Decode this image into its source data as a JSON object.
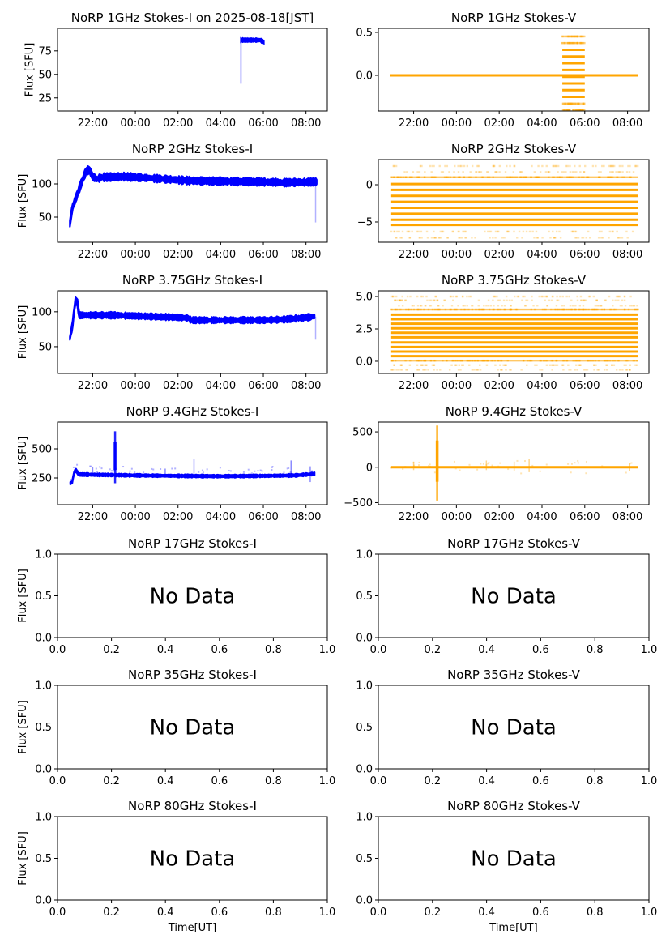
{
  "figure": {
    "title_suffix_date": "2025-08-18[JST]",
    "ylabel": "Flux [SFU]",
    "xlabel": "Time[UT]",
    "no_data_text": "No Data",
    "colors": {
      "stokes_i": "#0000ff",
      "stokes_v": "#ffa500",
      "axis": "#000000"
    }
  },
  "chart_data": [
    {
      "id": "1ghz-i",
      "type": "scatter",
      "title": "NoRP 1GHz Stokes-I on 2025-08-18[JST]",
      "ylabel": "Flux [SFU]",
      "has_data": true,
      "stokes": "I",
      "xlim_hours": [
        20.35,
        33.0
      ],
      "xticks": [
        {
          "h": 22,
          "label": "22:00"
        },
        {
          "h": 24,
          "label": "00:00"
        },
        {
          "h": 26,
          "label": "02:00"
        },
        {
          "h": 28,
          "label": "04:00"
        },
        {
          "h": 30,
          "label": "06:00"
        },
        {
          "h": 32,
          "label": "08:00"
        }
      ],
      "ylim": [
        11,
        99
      ],
      "yticks": [
        {
          "v": 25,
          "label": "25"
        },
        {
          "v": 50,
          "label": "50"
        },
        {
          "v": 75,
          "label": "75"
        }
      ],
      "segments": [
        {
          "t0": 28.95,
          "t1": 30.02,
          "level": 86.5,
          "spread": 1.6,
          "end_level": 84.5
        },
        {
          "spike_t": 28.95,
          "spike_min": 40,
          "spike_max": 87
        }
      ]
    },
    {
      "id": "1ghz-v",
      "type": "scatter",
      "title": "NoRP 1GHz Stokes-V",
      "ylabel": "",
      "has_data": true,
      "stokes": "V",
      "xlim_hours": [
        20.35,
        33.0
      ],
      "xticks": [
        {
          "h": 22,
          "label": "22:00"
        },
        {
          "h": 24,
          "label": "00:00"
        },
        {
          "h": 26,
          "label": "02:00"
        },
        {
          "h": 28,
          "label": "04:00"
        },
        {
          "h": 30,
          "label": "06:00"
        },
        {
          "h": 32,
          "label": "08:00"
        }
      ],
      "ylim": [
        -0.415,
        0.547
      ],
      "yticks": [
        {
          "v": 0.0,
          "label": "0.0"
        },
        {
          "v": 0.5,
          "label": "0.5"
        }
      ],
      "baseline": {
        "t0": 20.9,
        "t1": 32.5,
        "value": 0.0
      },
      "quantized": {
        "t0": 28.95,
        "t1": 30.0,
        "levels": [
          0.453,
          0.376,
          0.297,
          0.219,
          0.141,
          0.062,
          -0.016,
          -0.094,
          -0.172,
          -0.25,
          -0.329,
          -0.407
        ],
        "faint_levels": [
          0.453,
          0.376,
          -0.329,
          -0.407
        ]
      }
    },
    {
      "id": "2ghz-i",
      "type": "scatter",
      "title": "NoRP 2GHz Stokes-I",
      "ylabel": "Flux [SFU]",
      "has_data": true,
      "stokes": "I",
      "xlim_hours": [
        20.35,
        33.0
      ],
      "xticks": [
        {
          "h": 22,
          "label": "22:00"
        },
        {
          "h": 24,
          "label": "00:00"
        },
        {
          "h": 26,
          "label": "02:00"
        },
        {
          "h": 28,
          "label": "04:00"
        },
        {
          "h": 30,
          "label": "06:00"
        },
        {
          "h": 32,
          "label": "08:00"
        }
      ],
      "ylim": [
        12.2,
        136.6
      ],
      "yticks": [
        {
          "v": 50,
          "label": "50"
        },
        {
          "v": 100,
          "label": "100"
        }
      ],
      "profile": [
        [
          20.93,
          40
        ],
        [
          21.05,
          65
        ],
        [
          21.15,
          73
        ],
        [
          21.45,
          100
        ],
        [
          21.7,
          120
        ],
        [
          21.85,
          121
        ],
        [
          22.0,
          111
        ],
        [
          22.2,
          107
        ],
        [
          22.4,
          110
        ],
        [
          23.5,
          111
        ],
        [
          24.5,
          109
        ],
        [
          25.5,
          107
        ],
        [
          26.5,
          105
        ],
        [
          28.0,
          104
        ],
        [
          30.0,
          103
        ],
        [
          31.0,
          102
        ],
        [
          32.5,
          103
        ]
      ],
      "spread": 4.5,
      "drop": {
        "t": 32.45,
        "min": 42,
        "max": 103
      }
    },
    {
      "id": "2ghz-v",
      "type": "scatter",
      "title": "NoRP 2GHz Stokes-V",
      "ylabel": "",
      "has_data": true,
      "stokes": "V",
      "xlim_hours": [
        20.35,
        33.0
      ],
      "xticks": [
        {
          "h": 22,
          "label": "22:00"
        },
        {
          "h": 24,
          "label": "00:00"
        },
        {
          "h": 26,
          "label": "02:00"
        },
        {
          "h": 28,
          "label": "04:00"
        },
        {
          "h": 30,
          "label": "06:00"
        },
        {
          "h": 32,
          "label": "08:00"
        }
      ],
      "ylim": [
        -7.72,
        3.37
      ],
      "yticks": [
        {
          "v": -5,
          "label": "−5"
        },
        {
          "v": 0,
          "label": "0"
        }
      ],
      "quantized": {
        "t0": 20.95,
        "t1": 32.5,
        "levels": [
          2.5,
          1.7,
          1.0,
          0.1,
          -0.7,
          -1.5,
          -2.3,
          -3.1,
          -3.9,
          -4.7,
          -5.4,
          -6.3,
          -7.1
        ],
        "faint_levels": [
          2.5,
          1.7,
          -6.3,
          -7.1
        ],
        "medium_levels": [
          1.0
        ]
      }
    },
    {
      "id": "375ghz-i",
      "type": "scatter",
      "title": "NoRP 3.75GHz Stokes-I",
      "ylabel": "Flux [SFU]",
      "has_data": true,
      "stokes": "I",
      "xlim_hours": [
        20.35,
        33.0
      ],
      "xticks": [
        {
          "h": 22,
          "label": "22:00"
        },
        {
          "h": 24,
          "label": "00:00"
        },
        {
          "h": 26,
          "label": "02:00"
        },
        {
          "h": 28,
          "label": "04:00"
        },
        {
          "h": 30,
          "label": "06:00"
        },
        {
          "h": 32,
          "label": "08:00"
        }
      ],
      "ylim": [
        11.6,
        130
      ],
      "yticks": [
        {
          "v": 50,
          "label": "50"
        },
        {
          "v": 100,
          "label": "100"
        }
      ],
      "profile": [
        [
          20.93,
          62
        ],
        [
          21.05,
          80
        ],
        [
          21.12,
          100
        ],
        [
          21.2,
          117
        ],
        [
          21.3,
          112
        ],
        [
          21.35,
          95
        ],
        [
          22.0,
          95
        ],
        [
          23.0,
          95
        ],
        [
          24.0,
          94
        ],
        [
          25.0,
          93
        ],
        [
          26.0,
          92
        ],
        [
          26.5,
          91
        ],
        [
          26.6,
          88
        ],
        [
          28.0,
          88
        ],
        [
          30.0,
          88
        ],
        [
          31.0,
          89
        ],
        [
          32.4,
          93
        ]
      ],
      "spread": 3.5,
      "drop": {
        "t": 32.45,
        "min": 60,
        "max": 93
      }
    },
    {
      "id": "375ghz-v",
      "type": "scatter",
      "title": "NoRP 3.75GHz Stokes-V",
      "ylabel": "",
      "has_data": true,
      "stokes": "V",
      "xlim_hours": [
        20.35,
        33.0
      ],
      "xticks": [
        {
          "h": 22,
          "label": "22:00"
        },
        {
          "h": 24,
          "label": "00:00"
        },
        {
          "h": 26,
          "label": "02:00"
        },
        {
          "h": 28,
          "label": "04:00"
        },
        {
          "h": 30,
          "label": "06:00"
        },
        {
          "h": 32,
          "label": "08:00"
        }
      ],
      "ylim": [
        -0.94,
        5.44
      ],
      "yticks": [
        {
          "v": 0.0,
          "label": "0.0"
        },
        {
          "v": 2.5,
          "label": "2.5"
        },
        {
          "v": 5.0,
          "label": "5.0"
        }
      ],
      "quantized": {
        "t0": 20.95,
        "t1": 32.5,
        "levels": [
          5.0,
          4.7,
          4.3,
          4.0,
          3.6,
          3.25,
          2.9,
          2.55,
          2.2,
          1.85,
          1.45,
          1.1,
          0.75,
          0.4,
          0.05,
          -0.3,
          -0.65
        ],
        "faint_levels": [
          5.0,
          4.7,
          4.3,
          -0.3,
          -0.65
        ],
        "medium_levels": [
          4.0,
          0.05
        ]
      }
    },
    {
      "id": "94ghz-i",
      "type": "scatter",
      "title": "NoRP 9.4GHz Stokes-I",
      "ylabel": "Flux [SFU]",
      "has_data": true,
      "stokes": "I",
      "xlim_hours": [
        20.35,
        33.0
      ],
      "xticks": [
        {
          "h": 22,
          "label": "22:00"
        },
        {
          "h": 24,
          "label": "00:00"
        },
        {
          "h": 26,
          "label": "02:00"
        },
        {
          "h": 28,
          "label": "04:00"
        },
        {
          "h": 30,
          "label": "06:00"
        },
        {
          "h": 32,
          "label": "08:00"
        }
      ],
      "ylim": [
        21,
        729
      ],
      "yticks": [
        {
          "v": 250,
          "label": "250"
        },
        {
          "v": 500,
          "label": "500"
        }
      ],
      "profile": [
        [
          20.95,
          205
        ],
        [
          21.05,
          215
        ],
        [
          21.1,
          280
        ],
        [
          21.2,
          320
        ],
        [
          21.35,
          280
        ],
        [
          22.0,
          278
        ],
        [
          23.0,
          275
        ],
        [
          24.0,
          272
        ],
        [
          26.0,
          268
        ],
        [
          28.0,
          265
        ],
        [
          30.0,
          268
        ],
        [
          31.5,
          272
        ],
        [
          32.4,
          285
        ]
      ],
      "spread": 10,
      "spikes": [
        {
          "t": 23.05,
          "max": 650,
          "min": 205
        },
        {
          "t": 26.75,
          "max": 410,
          "min": 260
        },
        {
          "t": 25.4,
          "max": 330,
          "min": 265
        },
        {
          "t": 31.3,
          "max": 400,
          "min": 265
        },
        {
          "t": 22.0,
          "max": 345,
          "min": 270
        },
        {
          "t": 32.2,
          "max": 350,
          "min": 215
        }
      ]
    },
    {
      "id": "94ghz-v",
      "type": "scatter",
      "title": "NoRP 9.4GHz Stokes-V",
      "ylabel": "",
      "has_data": true,
      "stokes": "V",
      "xlim_hours": [
        20.35,
        33.0
      ],
      "xticks": [
        {
          "h": 22,
          "label": "22:00"
        },
        {
          "h": 24,
          "label": "00:00"
        },
        {
          "h": 26,
          "label": "02:00"
        },
        {
          "h": 28,
          "label": "04:00"
        },
        {
          "h": 30,
          "label": "06:00"
        },
        {
          "h": 32,
          "label": "08:00"
        }
      ],
      "ylim": [
        -529,
        638
      ],
      "yticks": [
        {
          "v": -500,
          "label": "−500"
        },
        {
          "v": 0,
          "label": "0"
        },
        {
          "v": 500,
          "label": "500"
        }
      ],
      "baseline": {
        "t0": 20.95,
        "t1": 32.5,
        "value": 0,
        "spread": 12
      },
      "spikes": [
        {
          "t": 23.1,
          "max": 590,
          "min": -470
        },
        {
          "t": 26.7,
          "max": 80,
          "min": -60
        },
        {
          "t": 27.4,
          "max": 120,
          "min": -70
        },
        {
          "t": 25.4,
          "max": 95,
          "min": -40
        },
        {
          "t": 22.0,
          "max": 80,
          "min": -40
        },
        {
          "t": 32.1,
          "max": 50,
          "min": -50
        }
      ]
    },
    {
      "id": "17ghz-i",
      "type": "scatter",
      "title": "NoRP 17GHz Stokes-I",
      "ylabel": "Flux [SFU]",
      "has_data": false,
      "stokes": "I",
      "xlim": [
        0,
        1
      ],
      "ylim": [
        0,
        1
      ],
      "xticks": [
        {
          "v": 0.0,
          "label": "0.0"
        },
        {
          "v": 0.2,
          "label": "0.2"
        },
        {
          "v": 0.4,
          "label": "0.4"
        },
        {
          "v": 0.6,
          "label": "0.6"
        },
        {
          "v": 0.8,
          "label": "0.8"
        },
        {
          "v": 1.0,
          "label": "1.0"
        }
      ],
      "yticks": [
        {
          "v": 0.0,
          "label": "0.0"
        },
        {
          "v": 0.5,
          "label": "0.5"
        },
        {
          "v": 1.0,
          "label": "1.0"
        }
      ],
      "annotation": "No Data"
    },
    {
      "id": "17ghz-v",
      "type": "scatter",
      "title": "NoRP 17GHz Stokes-V",
      "ylabel": "",
      "has_data": false,
      "stokes": "V",
      "xlim": [
        0,
        1
      ],
      "ylim": [
        0,
        1
      ],
      "xticks": [
        {
          "v": 0.0,
          "label": "0.0"
        },
        {
          "v": 0.2,
          "label": "0.2"
        },
        {
          "v": 0.4,
          "label": "0.4"
        },
        {
          "v": 0.6,
          "label": "0.6"
        },
        {
          "v": 0.8,
          "label": "0.8"
        },
        {
          "v": 1.0,
          "label": "1.0"
        }
      ],
      "yticks": [
        {
          "v": 0.0,
          "label": "0.0"
        },
        {
          "v": 0.5,
          "label": "0.5"
        },
        {
          "v": 1.0,
          "label": "1.0"
        }
      ],
      "annotation": "No Data"
    },
    {
      "id": "35ghz-i",
      "type": "scatter",
      "title": "NoRP 35GHz Stokes-I",
      "ylabel": "Flux [SFU]",
      "has_data": false,
      "stokes": "I",
      "xlim": [
        0,
        1
      ],
      "ylim": [
        0,
        1
      ],
      "xticks": [
        {
          "v": 0.0,
          "label": "0.0"
        },
        {
          "v": 0.2,
          "label": "0.2"
        },
        {
          "v": 0.4,
          "label": "0.4"
        },
        {
          "v": 0.6,
          "label": "0.6"
        },
        {
          "v": 0.8,
          "label": "0.8"
        },
        {
          "v": 1.0,
          "label": "1.0"
        }
      ],
      "yticks": [
        {
          "v": 0.0,
          "label": "0.0"
        },
        {
          "v": 0.5,
          "label": "0.5"
        },
        {
          "v": 1.0,
          "label": "1.0"
        }
      ],
      "annotation": "No Data"
    },
    {
      "id": "35ghz-v",
      "type": "scatter",
      "title": "NoRP 35GHz Stokes-V",
      "ylabel": "",
      "has_data": false,
      "stokes": "V",
      "xlim": [
        0,
        1
      ],
      "ylim": [
        0,
        1
      ],
      "xticks": [
        {
          "v": 0.0,
          "label": "0.0"
        },
        {
          "v": 0.2,
          "label": "0.2"
        },
        {
          "v": 0.4,
          "label": "0.4"
        },
        {
          "v": 0.6,
          "label": "0.6"
        },
        {
          "v": 0.8,
          "label": "0.8"
        },
        {
          "v": 1.0,
          "label": "1.0"
        }
      ],
      "yticks": [
        {
          "v": 0.0,
          "label": "0.0"
        },
        {
          "v": 0.5,
          "label": "0.5"
        },
        {
          "v": 1.0,
          "label": "1.0"
        }
      ],
      "annotation": "No Data"
    },
    {
      "id": "80ghz-i",
      "type": "scatter",
      "title": "NoRP 80GHz Stokes-I",
      "ylabel": "Flux [SFU]",
      "xlabel": "Time[UT]",
      "has_data": false,
      "stokes": "I",
      "xlim": [
        0,
        1
      ],
      "ylim": [
        0,
        1
      ],
      "xticks": [
        {
          "v": 0.0,
          "label": "0.0"
        },
        {
          "v": 0.2,
          "label": "0.2"
        },
        {
          "v": 0.4,
          "label": "0.4"
        },
        {
          "v": 0.6,
          "label": "0.6"
        },
        {
          "v": 0.8,
          "label": "0.8"
        },
        {
          "v": 1.0,
          "label": "1.0"
        }
      ],
      "yticks": [
        {
          "v": 0.0,
          "label": "0.0"
        },
        {
          "v": 0.5,
          "label": "0.5"
        },
        {
          "v": 1.0,
          "label": "1.0"
        }
      ],
      "annotation": "No Data"
    },
    {
      "id": "80ghz-v",
      "type": "scatter",
      "title": "NoRP 80GHz Stokes-V",
      "ylabel": "",
      "xlabel": "Time[UT]",
      "has_data": false,
      "stokes": "V",
      "xlim": [
        0,
        1
      ],
      "ylim": [
        0,
        1
      ],
      "xticks": [
        {
          "v": 0.0,
          "label": "0.0"
        },
        {
          "v": 0.2,
          "label": "0.2"
        },
        {
          "v": 0.4,
          "label": "0.4"
        },
        {
          "v": 0.6,
          "label": "0.6"
        },
        {
          "v": 0.8,
          "label": "0.8"
        },
        {
          "v": 1.0,
          "label": "1.0"
        }
      ],
      "yticks": [
        {
          "v": 0.0,
          "label": "0.0"
        },
        {
          "v": 0.5,
          "label": "0.5"
        },
        {
          "v": 1.0,
          "label": "1.0"
        }
      ],
      "annotation": "No Data"
    }
  ]
}
